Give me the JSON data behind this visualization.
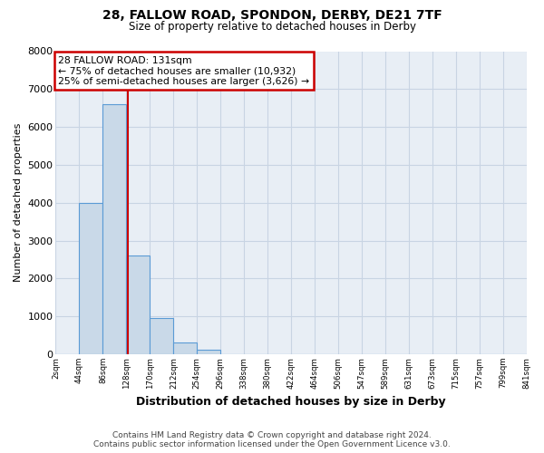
{
  "title": "28, FALLOW ROAD, SPONDON, DERBY, DE21 7TF",
  "subtitle": "Size of property relative to detached houses in Derby",
  "xlabel": "Distribution of detached houses by size in Derby",
  "ylabel": "Number of detached properties",
  "bin_edges": [
    2,
    44,
    86,
    128,
    170,
    212,
    254,
    296,
    338,
    380,
    422,
    464,
    506,
    547,
    589,
    631,
    673,
    715,
    757,
    799,
    841
  ],
  "bar_heights": [
    0,
    4000,
    6600,
    2600,
    950,
    320,
    120,
    0,
    0,
    0,
    0,
    0,
    0,
    0,
    0,
    0,
    0,
    0,
    0,
    0
  ],
  "bar_color": "#c9d9e8",
  "bar_edge_color": "#5b9bd5",
  "grid_color": "#c8d4e3",
  "background_color": "#ffffff",
  "plot_bg_color": "#e8eef5",
  "vline_x": 131,
  "vline_color": "#cc0000",
  "annotation_title": "28 FALLOW ROAD: 131sqm",
  "annotation_line1": "← 75% of detached houses are smaller (10,932)",
  "annotation_line2": "25% of semi-detached houses are larger (3,626) →",
  "annotation_box_color": "#ffffff",
  "annotation_box_edge_color": "#cc0000",
  "tick_labels": [
    "2sqm",
    "44sqm",
    "86sqm",
    "128sqm",
    "170sqm",
    "212sqm",
    "254sqm",
    "296sqm",
    "338sqm",
    "380sqm",
    "422sqm",
    "464sqm",
    "506sqm",
    "547sqm",
    "589sqm",
    "631sqm",
    "673sqm",
    "715sqm",
    "757sqm",
    "799sqm",
    "841sqm"
  ],
  "ylim": [
    0,
    8000
  ],
  "yticks": [
    0,
    1000,
    2000,
    3000,
    4000,
    5000,
    6000,
    7000,
    8000
  ],
  "footer1": "Contains HM Land Registry data © Crown copyright and database right 2024.",
  "footer2": "Contains public sector information licensed under the Open Government Licence v3.0."
}
